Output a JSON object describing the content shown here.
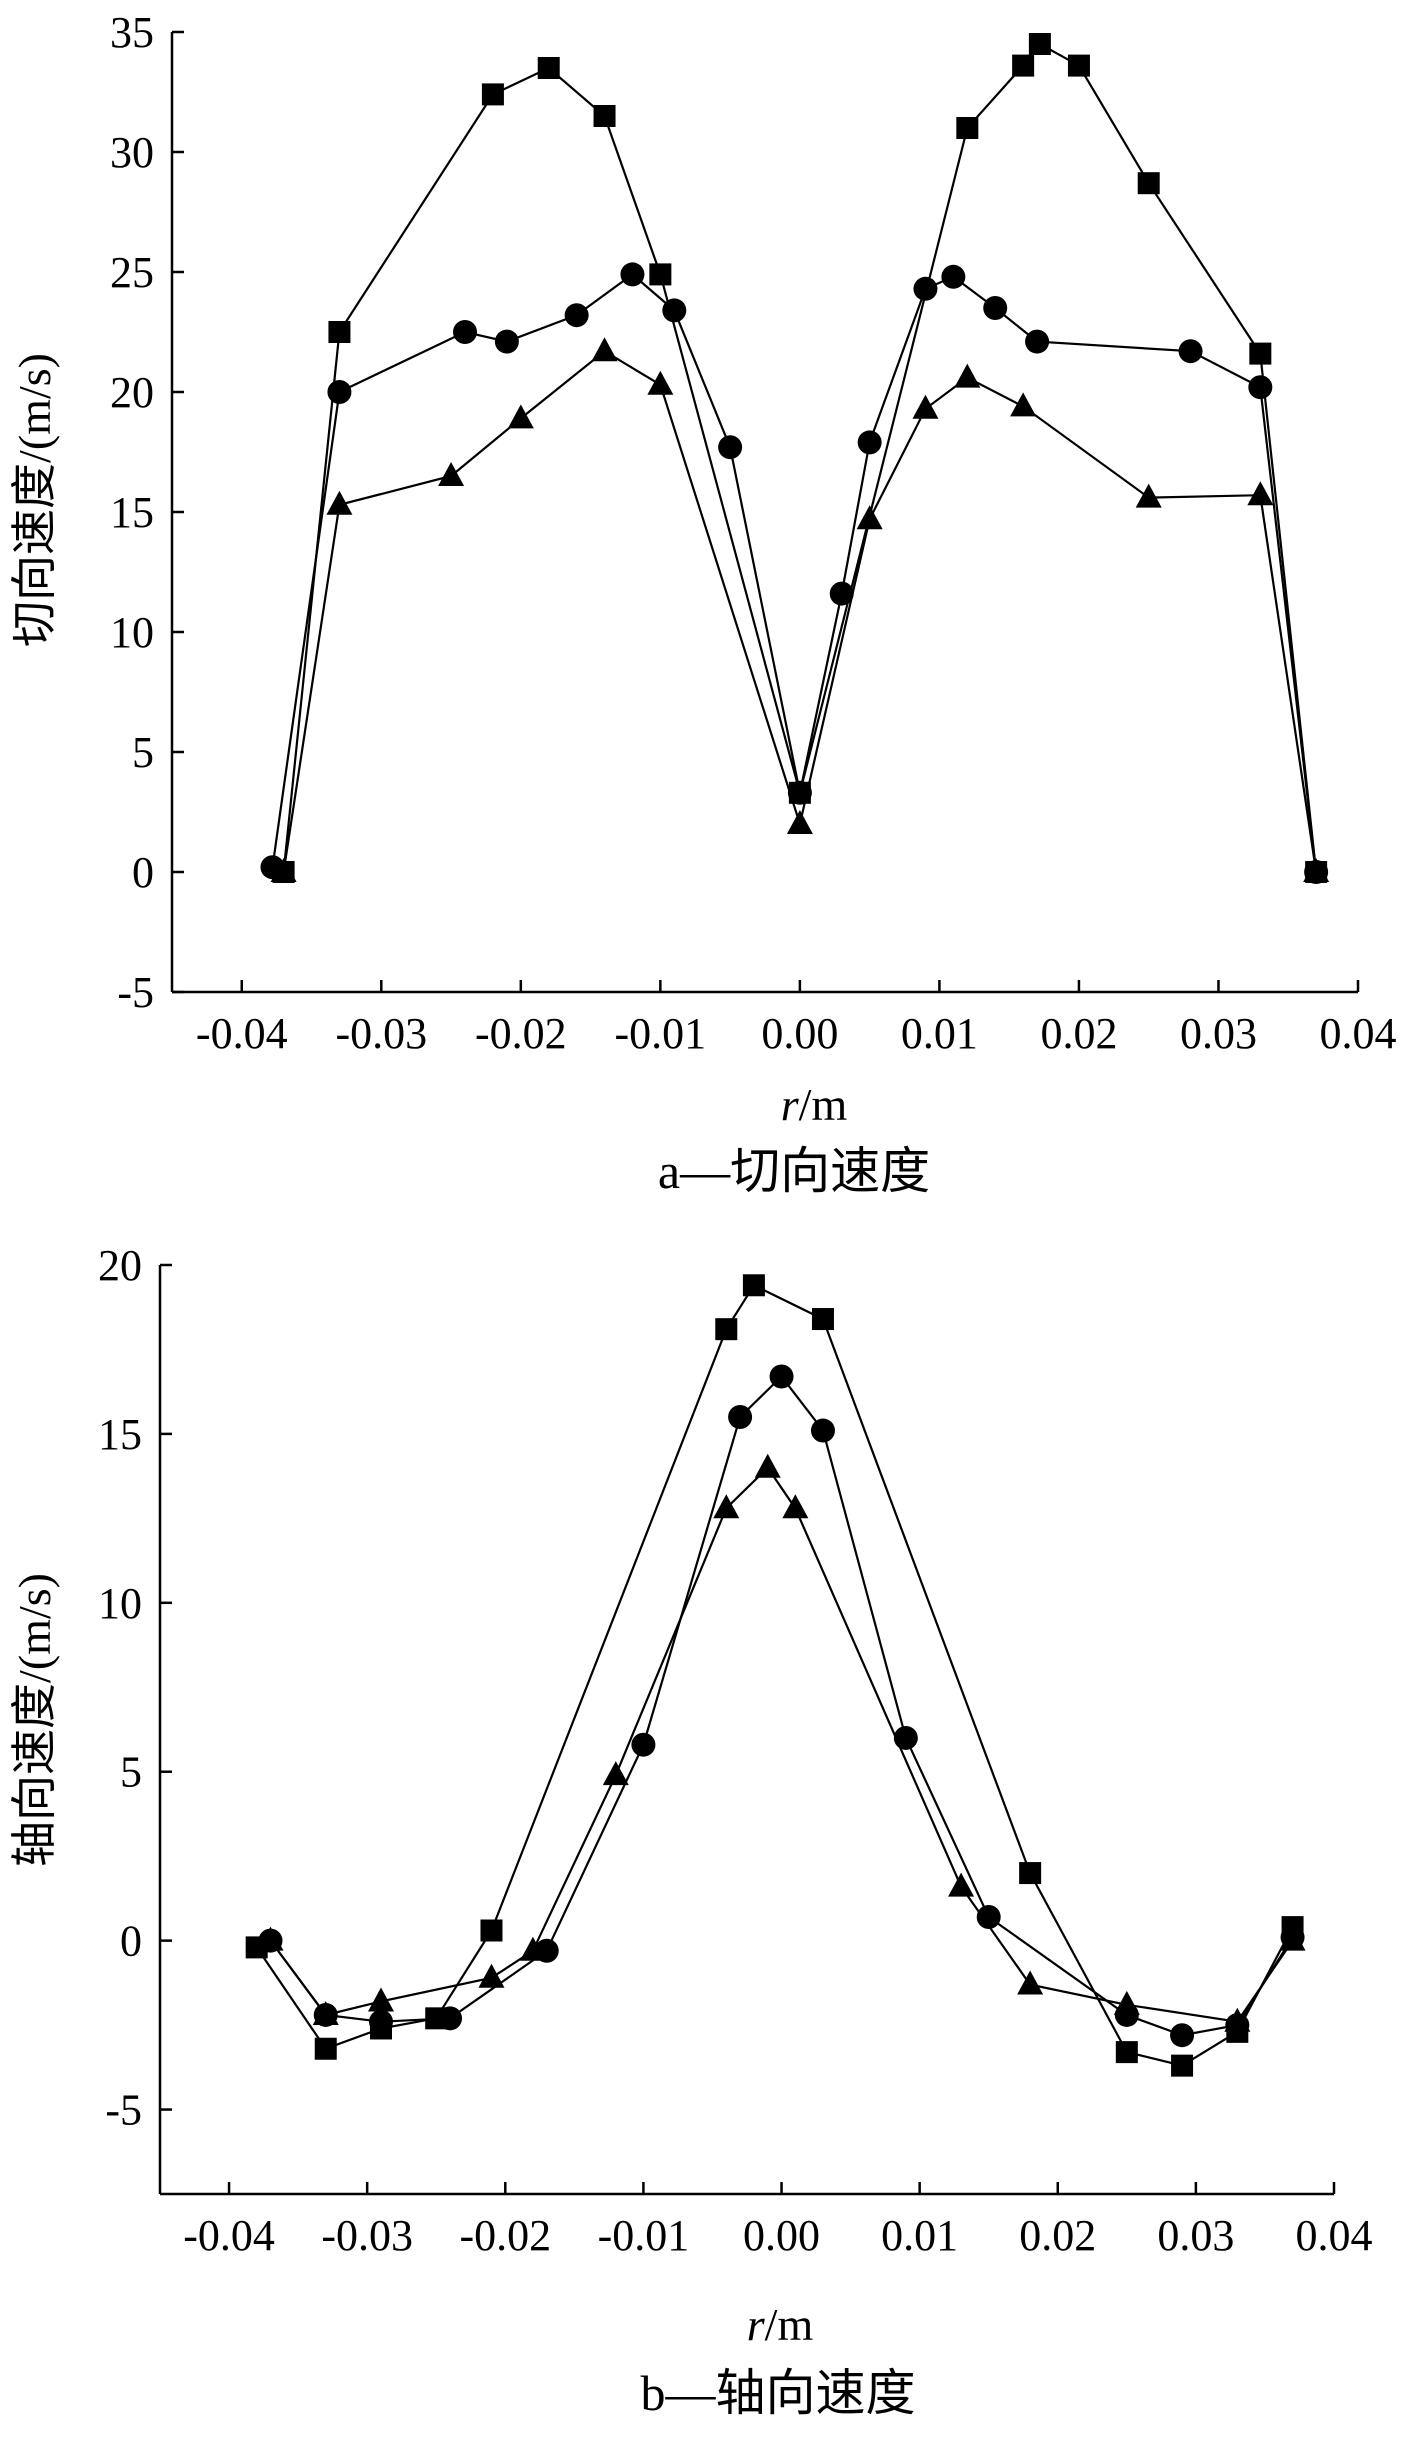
{
  "chart_data": [
    {
      "type": "line",
      "caption": "a—切向速度",
      "xlabel_var": "r",
      "xlabel_unit": "/m",
      "ylabel": "切向速度/(m/s)",
      "xlim": [
        -0.045,
        0.04
      ],
      "ylim": [
        -5,
        35
      ],
      "xticks": [
        "-0.04",
        "-0.03",
        "-0.02",
        "-0.01",
        "0.00",
        "0.01",
        "0.02",
        "0.03",
        "0.04"
      ],
      "xtick_values": [
        -0.04,
        -0.03,
        -0.02,
        -0.01,
        0.0,
        0.01,
        0.02,
        0.03,
        0.04
      ],
      "yticks": [
        "-5",
        "0",
        "5",
        "10",
        "15",
        "20",
        "25",
        "30",
        "35"
      ],
      "ytick_values": [
        -5,
        0,
        5,
        10,
        15,
        20,
        25,
        30,
        35
      ],
      "series": [
        {
          "marker": "square",
          "points": [
            [
              -0.037,
              0.0
            ],
            [
              -0.033,
              22.5
            ],
            [
              -0.022,
              32.4
            ],
            [
              -0.018,
              33.5
            ],
            [
              -0.014,
              31.5
            ],
            [
              -0.01,
              24.9
            ],
            [
              0.0,
              3.3
            ],
            [
              0.012,
              31.0
            ],
            [
              0.016,
              33.6
            ],
            [
              0.0172,
              34.5
            ],
            [
              0.02,
              33.6
            ],
            [
              0.025,
              28.7
            ],
            [
              0.033,
              21.6
            ],
            [
              0.037,
              0.0
            ]
          ]
        },
        {
          "marker": "circle",
          "points": [
            [
              -0.0378,
              0.2
            ],
            [
              -0.033,
              20.0
            ],
            [
              -0.024,
              22.5
            ],
            [
              -0.021,
              22.1
            ],
            [
              -0.016,
              23.2
            ],
            [
              -0.012,
              24.9
            ],
            [
              -0.009,
              23.4
            ],
            [
              -0.005,
              17.7
            ],
            [
              0.0,
              3.3
            ],
            [
              0.003,
              11.6
            ],
            [
              0.005,
              17.9
            ],
            [
              0.009,
              24.3
            ],
            [
              0.011,
              24.8
            ],
            [
              0.014,
              23.5
            ],
            [
              0.017,
              22.1
            ],
            [
              0.028,
              21.7
            ],
            [
              0.033,
              20.2
            ],
            [
              0.037,
              0.0
            ]
          ]
        },
        {
          "marker": "triangle",
          "points": [
            [
              -0.037,
              0.0
            ],
            [
              -0.033,
              15.3
            ],
            [
              -0.025,
              16.5
            ],
            [
              -0.02,
              18.9
            ],
            [
              -0.014,
              21.7
            ],
            [
              -0.01,
              20.3
            ],
            [
              0.0,
              2.0
            ],
            [
              0.005,
              14.7
            ],
            [
              0.009,
              19.3
            ],
            [
              0.012,
              20.6
            ],
            [
              0.016,
              19.4
            ],
            [
              0.025,
              15.6
            ],
            [
              0.033,
              15.7
            ],
            [
              0.037,
              0.0
            ]
          ]
        }
      ]
    },
    {
      "type": "line",
      "caption": "b—轴向速度",
      "xlabel_var": "r",
      "xlabel_unit": "/m",
      "ylabel": "轴向速度/(m/s)",
      "xlim": [
        -0.045,
        0.04
      ],
      "ylim": [
        -7.5,
        20
      ],
      "xticks": [
        "-0.04",
        "-0.03",
        "-0.02",
        "-0.01",
        "0.00",
        "0.01",
        "0.02",
        "0.03",
        "0.04"
      ],
      "xtick_values": [
        -0.04,
        -0.03,
        -0.02,
        -0.01,
        0.0,
        0.01,
        0.02,
        0.03,
        0.04
      ],
      "yticks": [
        "-5",
        "0",
        "5",
        "10",
        "15",
        "20"
      ],
      "ytick_values": [
        -5,
        0,
        5,
        10,
        15,
        20
      ],
      "series": [
        {
          "marker": "square",
          "points": [
            [
              -0.038,
              -0.2
            ],
            [
              -0.033,
              -3.2
            ],
            [
              -0.029,
              -2.6
            ],
            [
              -0.025,
              -2.3
            ],
            [
              -0.021,
              0.3
            ],
            [
              -0.004,
              18.1
            ],
            [
              -0.002,
              19.4
            ],
            [
              0.003,
              18.4
            ],
            [
              0.018,
              2.0
            ],
            [
              0.025,
              -3.3
            ],
            [
              0.029,
              -3.7
            ],
            [
              0.033,
              -2.7
            ],
            [
              0.037,
              0.4
            ]
          ]
        },
        {
          "marker": "circle",
          "points": [
            [
              -0.037,
              0.0
            ],
            [
              -0.033,
              -2.2
            ],
            [
              -0.029,
              -2.4
            ],
            [
              -0.024,
              -2.3
            ],
            [
              -0.017,
              -0.3
            ],
            [
              -0.01,
              5.8
            ],
            [
              -0.003,
              15.5
            ],
            [
              0.0,
              16.7
            ],
            [
              0.003,
              15.1
            ],
            [
              0.009,
              6.0
            ],
            [
              0.015,
              0.7
            ],
            [
              0.025,
              -2.2
            ],
            [
              0.029,
              -2.8
            ],
            [
              0.033,
              -2.5
            ],
            [
              0.037,
              0.1
            ]
          ]
        },
        {
          "marker": "triangle",
          "points": [
            [
              -0.037,
              0.0
            ],
            [
              -0.033,
              -2.2
            ],
            [
              -0.029,
              -1.8
            ],
            [
              -0.021,
              -1.1
            ],
            [
              -0.018,
              -0.3
            ],
            [
              -0.012,
              4.9
            ],
            [
              -0.004,
              12.8
            ],
            [
              -0.001,
              14.0
            ],
            [
              0.001,
              12.8
            ],
            [
              0.013,
              1.6
            ],
            [
              0.018,
              -1.3
            ],
            [
              0.025,
              -1.9
            ],
            [
              0.033,
              -2.4
            ],
            [
              0.037,
              0.0
            ]
          ]
        }
      ]
    }
  ]
}
